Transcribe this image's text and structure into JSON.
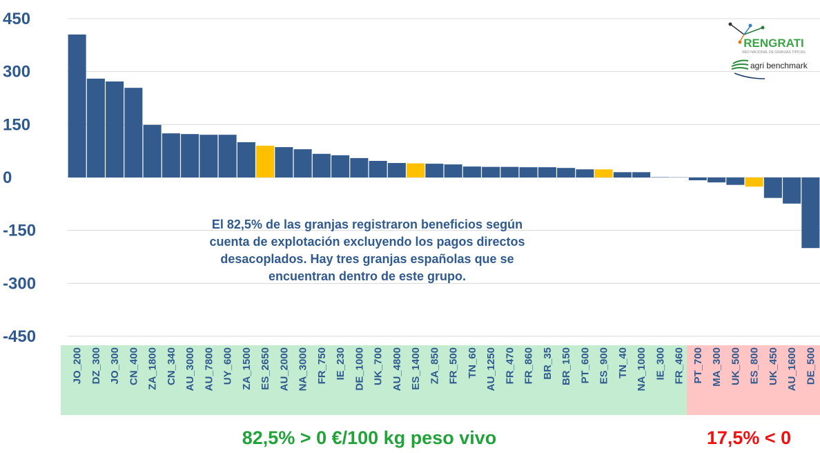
{
  "chart_data": {
    "type": "bar",
    "categories": [
      "JO_200",
      "DZ_300",
      "JO_300",
      "CN_400",
      "ZA_1800",
      "CN_340",
      "AU_3000",
      "AU_7800",
      "UY_600",
      "ZA_1500",
      "ES_2650",
      "AU_2000",
      "NA_3000",
      "FR_750",
      "IE_230",
      "DE_1000",
      "UK_700",
      "AU_4800",
      "ES_1400",
      "ZA_850",
      "FR_500",
      "TN_60",
      "AU_1250",
      "FR_470",
      "FR_860",
      "BR_35",
      "BR_150",
      "PT_600",
      "ES_900",
      "TN_40",
      "NA_1000",
      "IE_300",
      "FR_460",
      "PT_700",
      "MA_300",
      "UK_500",
      "ES_800",
      "UK_450",
      "AU_1600",
      "DE_500"
    ],
    "values": [
      405,
      280,
      272,
      254,
      149,
      125,
      123,
      121,
      121,
      100,
      90,
      86,
      80,
      67,
      63,
      55,
      47,
      41,
      40,
      39,
      37,
      31,
      30,
      30,
      29,
      29,
      27,
      23,
      23,
      15,
      15,
      1,
      0.5,
      -8,
      -14,
      -21,
      -26,
      -58,
      -74,
      -200
    ],
    "colors": [
      "#335b8e",
      "#335b8e",
      "#335b8e",
      "#335b8e",
      "#335b8e",
      "#335b8e",
      "#335b8e",
      "#335b8e",
      "#335b8e",
      "#335b8e",
      "#ffc000",
      "#335b8e",
      "#335b8e",
      "#335b8e",
      "#335b8e",
      "#335b8e",
      "#335b8e",
      "#335b8e",
      "#ffc000",
      "#335b8e",
      "#335b8e",
      "#335b8e",
      "#335b8e",
      "#335b8e",
      "#335b8e",
      "#335b8e",
      "#335b8e",
      "#335b8e",
      "#ffc000",
      "#335b8e",
      "#335b8e",
      "#335b8e",
      "#335b8e",
      "#335b8e",
      "#335b8e",
      "#335b8e",
      "#ffc000",
      "#335b8e",
      "#335b8e",
      "#335b8e"
    ],
    "ylim": [
      -450,
      450
    ],
    "yticks": [
      450,
      300,
      150,
      0,
      -150,
      -300,
      -450
    ],
    "grid": true,
    "annotation": [
      "El 82,5% de las granjas registraron beneficios según",
      "cuenta de explotación excluyendo los pagos directos",
      "desacoplados. Hay tres granjas españolas que se",
      "encuentran dentro de este grupo."
    ],
    "summary": [
      "82,5% > 0 €/100 kg peso vivo",
      "17,5% < 0"
    ]
  },
  "logo": {
    "name": "RENGRATI",
    "tagline": "RED NACIONAL DE GRANJAS TÍPICAS",
    "partner": "agri benchmark"
  }
}
